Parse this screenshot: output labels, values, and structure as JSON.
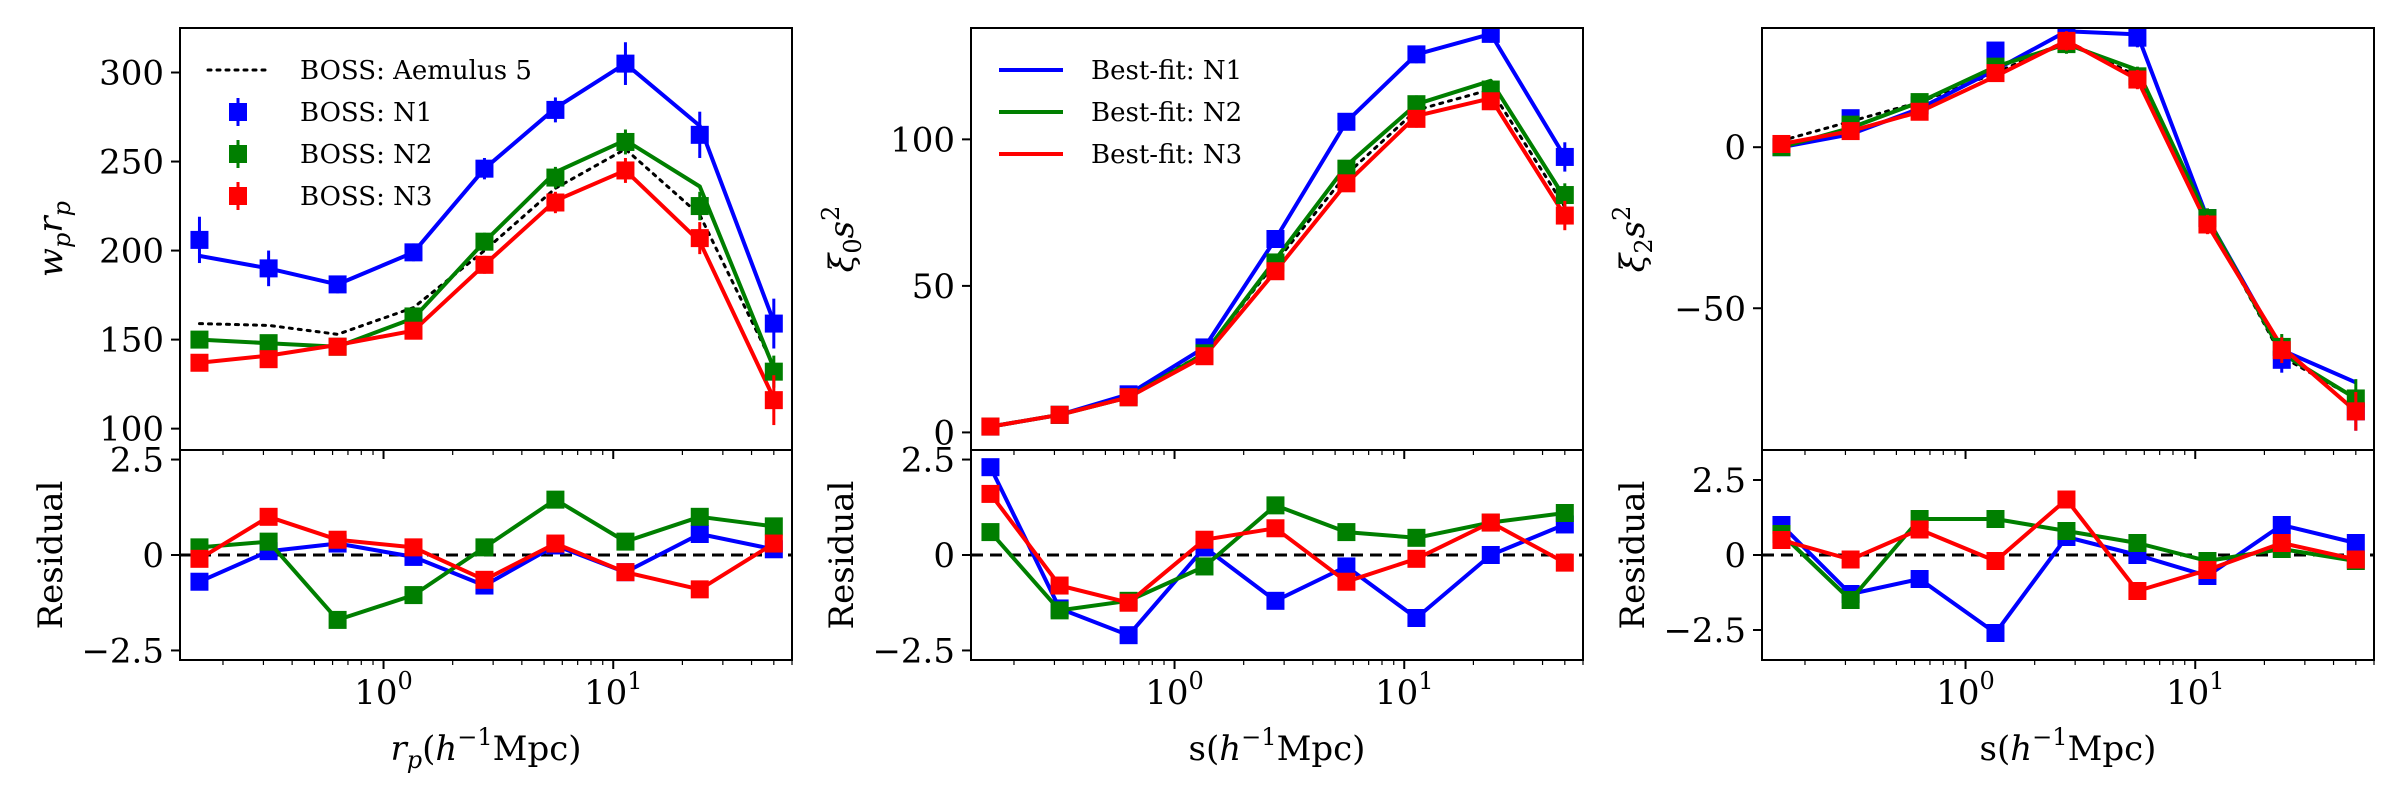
{
  "colors": {
    "N1": "#0000ff",
    "N2": "#007f00",
    "N3": "#ff0000",
    "aemulus": "#000000",
    "zero": "#000000"
  },
  "chart_data": [
    {
      "type": "line",
      "panel": "wp",
      "xscale": "log",
      "xlim": [
        0.13,
        60
      ],
      "xticks": [
        {
          "v": 1,
          "b": "10",
          "e": "0"
        },
        {
          "v": 10,
          "b": "10",
          "e": "1"
        }
      ],
      "xlabel": {
        "main": "r",
        "sub": "p",
        "rest": "(h",
        "sup": "−1",
        "unit": "Mpc)"
      },
      "top": {
        "ylabel": "w_p r_p",
        "ylim": [
          88,
          325
        ],
        "yticks": [
          100,
          150,
          200,
          250,
          300
        ],
        "x": [
          0.158,
          0.316,
          0.631,
          1.35,
          2.75,
          5.6,
          11.3,
          23.8,
          50
        ],
        "model_series": [
          {
            "name": "BOSS: Aemulus 5",
            "style": "dotted",
            "color": "aemulus",
            "values": [
              159,
              158,
              153,
              168,
              200,
              235,
              257,
              220,
              135
            ]
          },
          {
            "name": "Best-fit: N1",
            "color": "N1",
            "values": [
              197,
              190,
              181,
              199,
              246,
              280,
              305,
              270,
              160
            ]
          },
          {
            "name": "Best-fit: N2",
            "color": "N2",
            "values": [
              150,
              148,
              146,
              162,
              205,
              244,
              262,
              236,
              134
            ]
          },
          {
            "name": "Best-fit: N3",
            "color": "N3",
            "values": [
              137,
              141,
              147,
              155,
              192,
              228,
              245,
              205,
              117
            ]
          }
        ],
        "data_series": [
          {
            "name": "BOSS: N1",
            "color": "N1",
            "values": [
              206,
              190,
              181,
              199,
              246,
              279,
              305,
              265,
              159
            ],
            "err": [
              13,
              10,
              5,
              5,
              6,
              7,
              12,
              13,
              14
            ]
          },
          {
            "name": "BOSS: N2",
            "color": "N2",
            "values": [
              150,
              148,
              146,
              163,
              205,
              241,
              261,
              225,
              132
            ],
            "err": [
              4,
              4,
              4,
              4,
              5,
              6,
              7,
              8,
              9
            ]
          },
          {
            "name": "BOSS: N3",
            "color": "N3",
            "values": [
              137,
              139,
              146,
              155,
              192,
              227,
              245,
              207,
              116
            ],
            "err": [
              4,
              4,
              4,
              4,
              5,
              6,
              7,
              9,
              14
            ]
          }
        ],
        "legend": {
          "position": "upper-left",
          "entries": [
            {
              "label": "BOSS: Aemulus 5",
              "kind": "dotted",
              "color": "aemulus"
            },
            {
              "label": "BOSS: N1",
              "kind": "marker",
              "color": "N1"
            },
            {
              "label": "BOSS: N2",
              "kind": "marker",
              "color": "N2"
            },
            {
              "label": "BOSS: N3",
              "kind": "marker",
              "color": "N3"
            }
          ]
        }
      },
      "bottom": {
        "ylabel": "Residual",
        "ylim": [
          -2.75,
          2.75
        ],
        "yticks": [
          -2.5,
          0.0,
          2.5
        ],
        "series": [
          {
            "name": "N1",
            "color": "N1",
            "values": [
              -0.7,
              0.1,
              0.3,
              -0.05,
              -0.8,
              0.25,
              -0.45,
              0.55,
              0.15
            ]
          },
          {
            "name": "N2",
            "color": "N2",
            "values": [
              0.2,
              0.35,
              -1.7,
              -1.05,
              0.2,
              1.45,
              0.35,
              1.0,
              0.75
            ]
          },
          {
            "name": "N3",
            "color": "N3",
            "values": [
              -0.1,
              1.0,
              0.4,
              0.2,
              -0.65,
              0.3,
              -0.45,
              -0.9,
              0.3
            ]
          }
        ]
      }
    },
    {
      "type": "line",
      "panel": "xi0",
      "xscale": "log",
      "xlim": [
        0.13,
        60
      ],
      "xticks": [
        {
          "v": 1,
          "b": "10",
          "e": "0"
        },
        {
          "v": 10,
          "b": "10",
          "e": "1"
        }
      ],
      "xlabel": {
        "main": "s",
        "sub": "",
        "rest": "(h",
        "sup": "−1",
        "unit": "Mpc)"
      },
      "top": {
        "ylabel": "ξ_0 s^2",
        "ylim": [
          -6,
          138
        ],
        "yticks": [
          0,
          50,
          100
        ],
        "x": [
          0.158,
          0.316,
          0.631,
          1.35,
          2.75,
          5.6,
          11.3,
          23.8,
          50
        ],
        "model_series": [
          {
            "name": "BOSS: Aemulus 5",
            "style": "dotted",
            "color": "aemulus",
            "values": [
              2,
              6,
              13,
              27,
              58,
              88,
              110,
              117,
              77
            ]
          },
          {
            "name": "Best-fit: N1",
            "color": "N1",
            "values": [
              2,
              6,
              13,
              29,
              66,
              106,
              129,
              136,
              94
            ]
          },
          {
            "name": "Best-fit: N2",
            "color": "N2",
            "values": [
              2,
              6,
              12,
              27,
              59,
              91,
              112,
              120,
              80
            ]
          },
          {
            "name": "Best-fit: N3",
            "color": "N3",
            "values": [
              2,
              6,
              12,
              26,
              55,
              85,
              108,
              114,
              74
            ]
          }
        ],
        "data_series": [
          {
            "name": "BOSS: N1",
            "color": "N1",
            "values": [
              2,
              6,
              13,
              29,
              66,
              106,
              129,
              136,
              94
            ],
            "err": [
              1,
              1,
              1,
              1.5,
              2,
              2.5,
              3,
              3,
              5
            ]
          },
          {
            "name": "BOSS: N2",
            "color": "N2",
            "values": [
              2,
              6,
              12,
              27,
              58,
              90,
              112,
              117,
              81
            ],
            "err": [
              1,
              1,
              1,
              1.5,
              2,
              2.5,
              3,
              3,
              4
            ]
          },
          {
            "name": "BOSS: N3",
            "color": "N3",
            "values": [
              2,
              6,
              12,
              26,
              55,
              85,
              107,
              113,
              74
            ],
            "err": [
              1,
              1,
              1,
              1.5,
              2,
              2.5,
              3,
              3,
              5
            ]
          }
        ],
        "legend": {
          "position": "upper-left",
          "entries": [
            {
              "label": "Best-fit: N1",
              "kind": "line",
              "color": "N1"
            },
            {
              "label": "Best-fit: N2",
              "kind": "line",
              "color": "N2"
            },
            {
              "label": "Best-fit: N3",
              "kind": "line",
              "color": "N3"
            }
          ]
        }
      },
      "bottom": {
        "ylabel": "Residual",
        "ylim": [
          -2.75,
          2.75
        ],
        "yticks": [
          -2.5,
          0.0,
          2.5
        ],
        "series": [
          {
            "name": "N1",
            "color": "N1",
            "values": [
              2.3,
              -1.4,
              -2.1,
              0.2,
              -1.2,
              -0.3,
              -1.65,
              0.0,
              0.8
            ]
          },
          {
            "name": "N2",
            "color": "N2",
            "values": [
              0.6,
              -1.45,
              -1.2,
              -0.3,
              1.3,
              0.6,
              0.45,
              0.85,
              1.1
            ]
          },
          {
            "name": "N3",
            "color": "N3",
            "values": [
              1.6,
              -0.8,
              -1.25,
              0.4,
              0.7,
              -0.7,
              -0.1,
              0.85,
              -0.2
            ]
          }
        ]
      }
    },
    {
      "type": "line",
      "panel": "xi2",
      "xscale": "log",
      "xlim": [
        0.13,
        60
      ],
      "xticks": [
        {
          "v": 1,
          "b": "10",
          "e": "0"
        },
        {
          "v": 10,
          "b": "10",
          "e": "1"
        }
      ],
      "xlabel": {
        "main": "s",
        "sub": "",
        "rest": "(h",
        "sup": "−1",
        "unit": "Mpc)"
      },
      "top": {
        "ylabel": "ξ_2 s^2",
        "ylim": [
          -94,
          37
        ],
        "yticks": [
          -50,
          0
        ],
        "x": [
          0.158,
          0.316,
          0.631,
          1.35,
          2.75,
          5.6,
          11.3,
          23.8,
          50
        ],
        "model_series": [
          {
            "name": "BOSS: Aemulus 5",
            "style": "dotted",
            "color": "aemulus",
            "values": [
              2,
              8,
              14,
              23,
              33,
              22,
              -22,
              -65,
              -78
            ]
          },
          {
            "name": "Best-fit: N1",
            "color": "N1",
            "values": [
              0,
              4,
              12,
              24,
              36,
              35,
              -22,
              -63,
              -73
            ]
          },
          {
            "name": "Best-fit: N2",
            "color": "N2",
            "values": [
              0,
              6,
              14,
              25,
              32,
              24,
              -22,
              -64,
              -78
            ]
          },
          {
            "name": "Best-fit: N3",
            "color": "N3",
            "values": [
              1,
              5,
              11,
              22,
              33,
              21,
              -24,
              -62,
              -82
            ]
          }
        ],
        "data_series": [
          {
            "name": "BOSS: N1",
            "color": "N1",
            "values": [
              0,
              9,
              13,
              30,
              35,
              34,
              -22,
              -66,
              -82
            ],
            "err": [
              1.5,
              2,
              2,
              2.5,
              3,
              3,
              3,
              4,
              6
            ]
          },
          {
            "name": "BOSS: N2",
            "color": "N2",
            "values": [
              0,
              7,
              14,
              25,
              32,
              22,
              -22,
              -62,
              -78
            ],
            "err": [
              1.5,
              2,
              2,
              2.5,
              3,
              3,
              3,
              4,
              6
            ]
          },
          {
            "name": "BOSS: N3",
            "color": "N3",
            "values": [
              1,
              5,
              11,
              23,
              33,
              21,
              -24,
              -63,
              -82
            ],
            "err": [
              1.5,
              2,
              2,
              2.5,
              3,
              3,
              3,
              4,
              6
            ]
          }
        ],
        "legend": null
      },
      "bottom": {
        "ylabel": "Residual",
        "ylim": [
          -3.5,
          3.5
        ],
        "yticks": [
          -2.5,
          0.0,
          2.5
        ],
        "series": [
          {
            "name": "N1",
            "color": "N1",
            "values": [
              1.0,
              -1.3,
              -0.8,
              -2.6,
              0.6,
              0.0,
              -0.7,
              1.0,
              0.4
            ]
          },
          {
            "name": "N2",
            "color": "N2",
            "values": [
              0.7,
              -1.5,
              1.2,
              1.2,
              0.8,
              0.4,
              -0.2,
              0.2,
              -0.2
            ]
          },
          {
            "name": "N3",
            "color": "N3",
            "values": [
              0.5,
              -0.15,
              0.85,
              -0.2,
              1.85,
              -1.2,
              -0.5,
              0.4,
              -0.15
            ]
          }
        ]
      }
    }
  ]
}
